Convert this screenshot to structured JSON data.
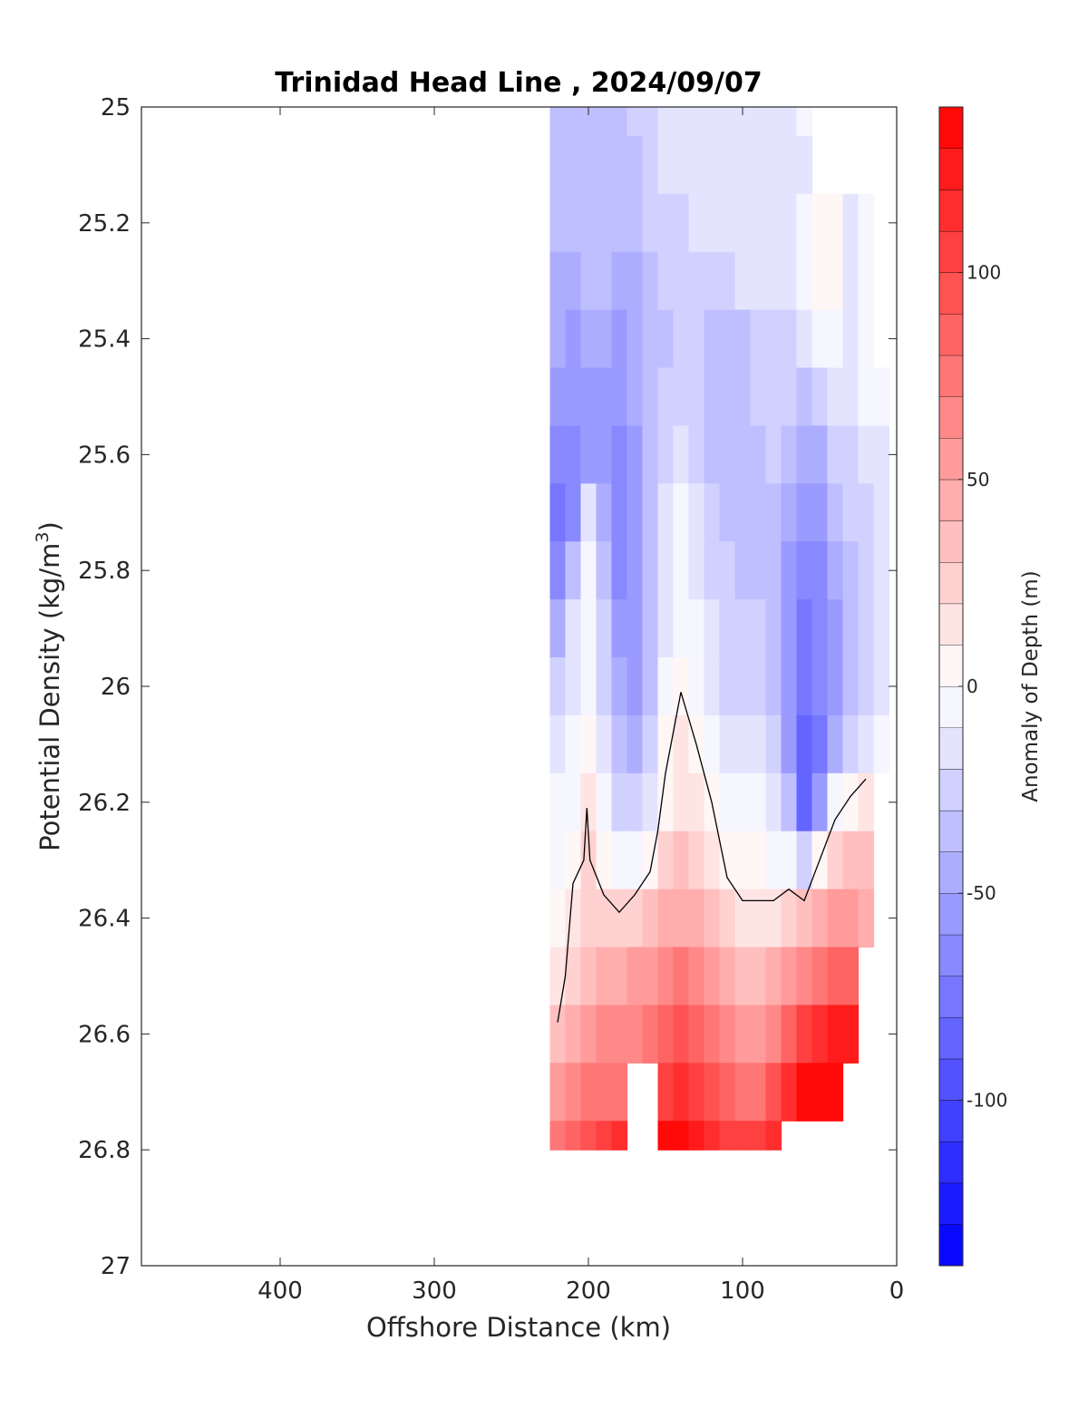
{
  "chart_data": {
    "type": "heatmap",
    "subtype": "filled-contour-section",
    "title": "Trinidad Head Line , 2024/09/07",
    "xlabel": "Offshore Distance (km)",
    "ylabel_main": "Potential Density (kg/m",
    "ylabel_sup": "3",
    "ylabel_close": ")",
    "colorbar_label": "Anomaly of Depth (m)",
    "x_reversed": true,
    "y_reversed": true,
    "xlim": [
      0,
      490
    ],
    "ylim": [
      25,
      27
    ],
    "x_ticks": [
      400,
      300,
      200,
      100,
      0
    ],
    "y_ticks": [
      25,
      25.2,
      25.4,
      25.6,
      25.8,
      26,
      26.2,
      26.4,
      26.6,
      26.8,
      27
    ],
    "y_tick_labels": [
      "25",
      "25.2",
      "25.4",
      "25.6",
      "25.8",
      "26",
      "26.2",
      "26.4",
      "26.6",
      "26.8",
      "27"
    ],
    "colorbar": {
      "clim": [
        -140,
        140
      ],
      "step": 10,
      "ticks": [
        100,
        50,
        0,
        -50,
        -100
      ],
      "colormap": "blue-white-red",
      "negative_color": "#0000ff",
      "positive_color": "#ff0000"
    },
    "contour_zero_line": {
      "color": "#000000",
      "points": [
        [
          220,
          26.58
        ],
        [
          215,
          26.5
        ],
        [
          210,
          26.34
        ],
        [
          203,
          26.3
        ],
        [
          201,
          26.21
        ],
        [
          199,
          26.3
        ],
        [
          190,
          26.36
        ],
        [
          180,
          26.39
        ],
        [
          170,
          26.36
        ],
        [
          160,
          26.32
        ],
        [
          155,
          26.25
        ],
        [
          150,
          26.15
        ],
        [
          145,
          26.08
        ],
        [
          140,
          26.01
        ],
        [
          130,
          26.1
        ],
        [
          120,
          26.2
        ],
        [
          110,
          26.33
        ],
        [
          100,
          26.37
        ],
        [
          80,
          26.37
        ],
        [
          70,
          26.35
        ],
        [
          60,
          26.37
        ],
        [
          50,
          26.3
        ],
        [
          40,
          26.23
        ],
        [
          30,
          26.19
        ],
        [
          20,
          26.16
        ]
      ]
    },
    "grid_x": [
      220,
      210,
      200,
      190,
      180,
      170,
      160,
      150,
      140,
      130,
      120,
      110,
      100,
      90,
      80,
      70,
      60,
      50,
      40,
      30,
      20,
      10
    ],
    "grid_y": [
      25.0,
      25.1,
      25.2,
      25.3,
      25.4,
      25.5,
      25.6,
      25.7,
      25.8,
      25.9,
      26.0,
      26.1,
      26.2,
      26.3,
      26.4,
      26.5,
      26.6,
      26.7,
      26.8
    ],
    "anomaly": [
      [
        -40,
        -40,
        -40,
        -40,
        -40,
        -30,
        -30,
        -20,
        -20,
        -20,
        -20,
        -20,
        -20,
        -20,
        -20,
        -20,
        -10,
        null,
        null,
        null,
        null,
        null
      ],
      [
        -40,
        -40,
        -40,
        -40,
        -40,
        -40,
        -30,
        -20,
        -20,
        -20,
        -20,
        -20,
        -20,
        -20,
        -20,
        -20,
        -20,
        null,
        null,
        null,
        null,
        null
      ],
      [
        -40,
        -40,
        -40,
        -40,
        -40,
        -40,
        -30,
        -30,
        -30,
        -20,
        -20,
        -20,
        -20,
        -20,
        -20,
        -20,
        -10,
        0,
        0,
        -20,
        -10,
        null
      ],
      [
        -50,
        -50,
        -40,
        -40,
        -50,
        -50,
        -40,
        -30,
        -30,
        -30,
        -30,
        -30,
        -20,
        -20,
        -20,
        -20,
        -10,
        0,
        0,
        -20,
        -10,
        null
      ],
      [
        -50,
        -60,
        -50,
        -50,
        -60,
        -50,
        -40,
        -40,
        -30,
        -30,
        -40,
        -40,
        -40,
        -30,
        -30,
        -30,
        -20,
        -10,
        -10,
        -20,
        -10,
        null
      ],
      [
        -60,
        -60,
        -60,
        -60,
        -60,
        -50,
        -40,
        -30,
        -30,
        -30,
        -40,
        -40,
        -40,
        -30,
        -30,
        -30,
        -40,
        -30,
        -20,
        -20,
        -10,
        -10
      ],
      [
        -70,
        -70,
        -60,
        -60,
        -70,
        -60,
        -40,
        -30,
        -20,
        -30,
        -40,
        -40,
        -40,
        -40,
        -30,
        -40,
        -50,
        -50,
        -30,
        -30,
        -20,
        -20
      ],
      [
        -80,
        -70,
        -20,
        -50,
        -70,
        -60,
        -40,
        -20,
        -10,
        -20,
        -30,
        -40,
        -40,
        -40,
        -40,
        -50,
        -60,
        -60,
        -40,
        -30,
        -30,
        -20
      ],
      [
        -70,
        -40,
        -10,
        -40,
        -70,
        -60,
        -40,
        -20,
        -10,
        -20,
        -30,
        -30,
        -40,
        -40,
        -40,
        -60,
        -70,
        -70,
        -50,
        -40,
        -30,
        -20
      ],
      [
        -50,
        -20,
        -10,
        -30,
        -60,
        -60,
        -40,
        -20,
        -10,
        -10,
        -20,
        -30,
        -30,
        -30,
        -40,
        -60,
        -80,
        -70,
        -60,
        -40,
        -30,
        -20
      ],
      [
        -30,
        -20,
        -10,
        -30,
        -50,
        -60,
        -40,
        -10,
        0,
        -10,
        -20,
        -30,
        -30,
        -30,
        -40,
        -60,
        -80,
        -70,
        -60,
        -40,
        -30,
        -20
      ],
      [
        -20,
        -10,
        0,
        -20,
        -40,
        -50,
        -30,
        0,
        10,
        0,
        -10,
        -20,
        -20,
        -20,
        -30,
        -60,
        -90,
        -80,
        -50,
        -30,
        -20,
        -10
      ],
      [
        -10,
        -10,
        10,
        -10,
        -30,
        -30,
        -20,
        0,
        10,
        10,
        0,
        -10,
        -10,
        -10,
        -20,
        -40,
        -90,
        -60,
        -10,
        0,
        10,
        null
      ],
      [
        -10,
        0,
        20,
        0,
        -10,
        -10,
        0,
        20,
        30,
        20,
        10,
        0,
        0,
        0,
        -10,
        -10,
        -30,
        0,
        20,
        30,
        30,
        null
      ],
      [
        0,
        10,
        20,
        20,
        20,
        20,
        30,
        40,
        40,
        40,
        30,
        20,
        10,
        10,
        10,
        20,
        30,
        40,
        50,
        50,
        40,
        null
      ],
      [
        10,
        20,
        30,
        40,
        40,
        50,
        50,
        60,
        70,
        60,
        50,
        40,
        30,
        30,
        40,
        50,
        60,
        70,
        80,
        80,
        null,
        null
      ],
      [
        30,
        40,
        50,
        60,
        60,
        60,
        70,
        80,
        90,
        80,
        70,
        60,
        50,
        50,
        60,
        80,
        100,
        110,
        120,
        120,
        null,
        null
      ],
      [
        50,
        60,
        70,
        70,
        70,
        null,
        null,
        100,
        110,
        100,
        90,
        80,
        70,
        70,
        90,
        110,
        140,
        140,
        140,
        null,
        null,
        null
      ],
      [
        70,
        80,
        90,
        100,
        110,
        null,
        null,
        130,
        130,
        120,
        110,
        100,
        100,
        100,
        110,
        null,
        null,
        null,
        null,
        null,
        null,
        null
      ]
    ]
  }
}
